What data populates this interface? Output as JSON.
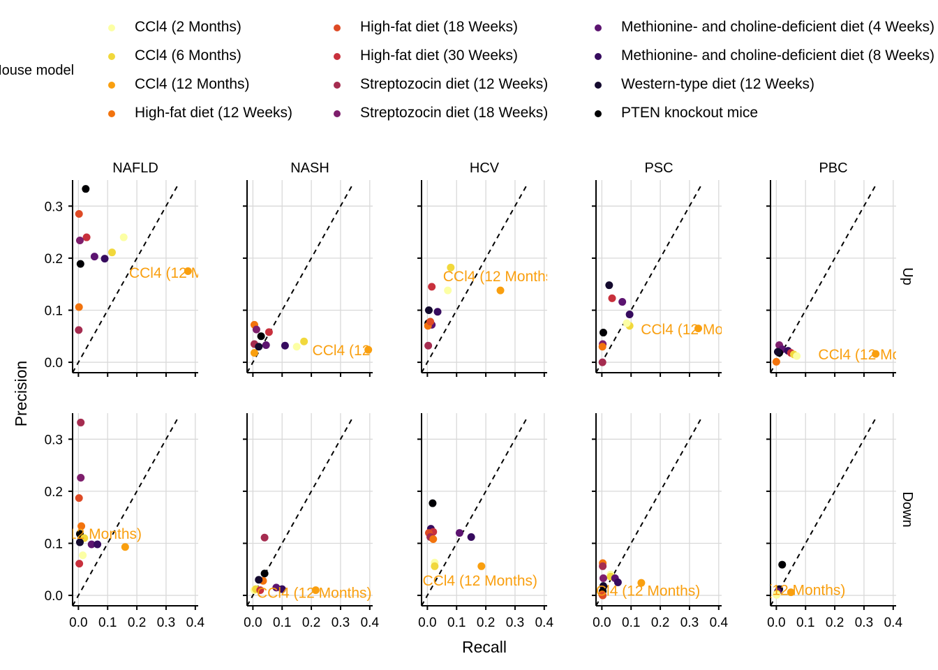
{
  "legend": {
    "title": "Mouse model",
    "items": [
      {
        "label": "CCl4 (2 Months)",
        "color": "#FCFFA4"
      },
      {
        "label": "CCl4 (6 Months)",
        "color": "#F1D83C"
      },
      {
        "label": "CCl4 (12 Months)",
        "color": "#F99F0F"
      },
      {
        "label": "High-fat diet (12 Weeks)",
        "color": "#F2730D"
      },
      {
        "label": "High-fat diet (18 Weeks)",
        "color": "#DE4A25"
      },
      {
        "label": "High-fat diet (30 Weeks)",
        "color": "#C8303C"
      },
      {
        "label": "Streptozocin diet (12 Weeks)",
        "color": "#A52C50"
      },
      {
        "label": "Streptozocin diet (18 Weeks)",
        "color": "#7E1E6C"
      },
      {
        "label": "Methionine- and choline-deficient diet (4 Weeks)",
        "color": "#5C1470"
      },
      {
        "label": "Methionine- and choline-deficient diet (8 Weeks)",
        "color": "#360B5E"
      },
      {
        "label": "Western-type diet (12 Weeks)",
        "color": "#140A2E"
      },
      {
        "label": "PTEN knockout mice",
        "color": "#000004"
      }
    ]
  },
  "chart_data": {
    "type": "scatter",
    "xlabel": "Recall",
    "ylabel": "Precision",
    "xlim": [
      -0.02,
      0.41
    ],
    "ylim": [
      -0.02,
      0.35
    ],
    "x_ticks": [
      "0.0",
      "0.1",
      "0.2",
      "0.3",
      "0.4"
    ],
    "y_ticks": [
      "0.0",
      "0.1",
      "0.2",
      "0.3"
    ],
    "x_tick_values": [
      0,
      0.1,
      0.2,
      0.3,
      0.4
    ],
    "y_tick_values": [
      0,
      0.1,
      0.2,
      0.3
    ],
    "grid": true,
    "reference_line": "y = x (dashed)",
    "legend_position": "top",
    "facet_columns": [
      "NAFLD",
      "NASH",
      "HCV",
      "PSC",
      "PBC"
    ],
    "facet_rows": [
      "Up",
      "Down"
    ],
    "annotation_text": "CCl4 (12 Months)",
    "annotation_color": "#F99F0F",
    "panels": [
      {
        "col": "NAFLD",
        "row": "Up",
        "label_at": [
          0.37,
          0.172
        ],
        "points": [
          [
            0.025,
            0.333,
            11
          ],
          [
            0.002,
            0.285,
            4
          ],
          [
            0.028,
            0.24,
            5
          ],
          [
            0.005,
            0.234,
            7
          ],
          [
            0.155,
            0.24,
            0
          ],
          [
            0.115,
            0.211,
            1
          ],
          [
            0.055,
            0.203,
            8
          ],
          [
            0.09,
            0.199,
            9
          ],
          [
            0.007,
            0.189,
            11
          ],
          [
            0.375,
            0.175,
            2
          ],
          [
            0.002,
            0.106,
            3
          ],
          [
            0.001,
            0.062,
            6
          ]
        ]
      },
      {
        "col": "NASH",
        "row": "Up",
        "label_at": [
          0.4,
          0.023
        ],
        "points": [
          [
            0.005,
            0.072,
            3
          ],
          [
            0.012,
            0.063,
            7
          ],
          [
            0.055,
            0.058,
            5
          ],
          [
            0.028,
            0.05,
            11
          ],
          [
            0.045,
            0.033,
            8
          ],
          [
            0.11,
            0.032,
            9
          ],
          [
            0.175,
            0.04,
            1
          ],
          [
            0.15,
            0.03,
            0
          ],
          [
            0.005,
            0.035,
            6
          ],
          [
            0.005,
            0.018,
            2
          ],
          [
            0.02,
            0.03,
            10
          ],
          [
            0.395,
            0.024,
            2
          ]
        ]
      },
      {
        "col": "HCV",
        "row": "Up",
        "label_at": [
          0.25,
          0.165
        ],
        "points": [
          [
            0.015,
            0.145,
            5
          ],
          [
            0.08,
            0.182,
            1
          ],
          [
            0.07,
            0.138,
            0
          ],
          [
            0.25,
            0.138,
            2
          ],
          [
            0.005,
            0.1,
            10
          ],
          [
            0.035,
            0.097,
            9
          ],
          [
            0.003,
            0.075,
            11
          ],
          [
            0.015,
            0.072,
            8
          ],
          [
            0.002,
            0.07,
            3
          ],
          [
            0.003,
            0.032,
            6
          ],
          [
            0.01,
            0.078,
            4
          ]
        ]
      },
      {
        "col": "PSC",
        "row": "Up",
        "label_at": [
          0.33,
          0.063
        ],
        "points": [
          [
            0.025,
            0.148,
            10
          ],
          [
            0.035,
            0.123,
            5
          ],
          [
            0.07,
            0.116,
            8
          ],
          [
            0.095,
            0.092,
            9
          ],
          [
            0.095,
            0.07,
            1
          ],
          [
            0.085,
            0.075,
            0
          ],
          [
            0.33,
            0.065,
            2
          ],
          [
            0.005,
            0.057,
            11
          ],
          [
            0.003,
            0.035,
            7
          ],
          [
            0.002,
            0.03,
            3
          ],
          [
            0.002,
            0.0,
            6
          ]
        ]
      },
      {
        "col": "PBC",
        "row": "Up",
        "label_at": [
          0.34,
          0.015
        ],
        "points": [
          [
            0.01,
            0.033,
            7
          ],
          [
            0.02,
            0.025,
            8
          ],
          [
            0.04,
            0.022,
            9
          ],
          [
            0.05,
            0.018,
            5
          ],
          [
            0.01,
            0.018,
            11
          ],
          [
            0.06,
            0.015,
            1
          ],
          [
            0.07,
            0.012,
            0
          ],
          [
            0.34,
            0.016,
            2
          ],
          [
            0.0,
            0.001,
            3
          ],
          [
            0.005,
            0.02,
            10
          ]
        ]
      },
      {
        "col": "NAFLD",
        "row": "Down",
        "label_at": [
          0.02,
          0.118
        ],
        "points": [
          [
            0.008,
            0.332,
            6
          ],
          [
            0.008,
            0.226,
            7
          ],
          [
            0.002,
            0.187,
            4
          ],
          [
            0.01,
            0.133,
            3
          ],
          [
            0.005,
            0.118,
            11
          ],
          [
            0.02,
            0.11,
            1
          ],
          [
            0.005,
            0.102,
            10
          ],
          [
            0.045,
            0.098,
            8
          ],
          [
            0.065,
            0.098,
            9
          ],
          [
            0.16,
            0.093,
            2
          ],
          [
            0.015,
            0.077,
            0
          ],
          [
            0.003,
            0.061,
            5
          ]
        ]
      },
      {
        "col": "NASH",
        "row": "Down",
        "label_at": [
          0.21,
          0.005
        ],
        "points": [
          [
            0.04,
            0.111,
            6
          ],
          [
            0.04,
            0.042,
            11
          ],
          [
            0.035,
            0.028,
            3
          ],
          [
            0.02,
            0.03,
            10
          ],
          [
            0.08,
            0.015,
            8
          ],
          [
            0.1,
            0.012,
            9
          ],
          [
            0.215,
            0.01,
            2
          ],
          [
            0.005,
            0.01,
            0
          ],
          [
            0.01,
            0.012,
            1
          ],
          [
            0.025,
            0.01,
            5
          ]
        ]
      },
      {
        "col": "HCV",
        "row": "Down",
        "label_at": [
          0.18,
          0.028
        ],
        "points": [
          [
            0.018,
            0.177,
            11
          ],
          [
            0.012,
            0.128,
            9
          ],
          [
            0.02,
            0.122,
            5
          ],
          [
            0.005,
            0.12,
            4
          ],
          [
            0.01,
            0.112,
            6
          ],
          [
            0.02,
            0.108,
            3
          ],
          [
            0.11,
            0.12,
            8
          ],
          [
            0.15,
            0.112,
            9
          ],
          [
            0.025,
            0.063,
            0
          ],
          [
            0.025,
            0.056,
            1
          ],
          [
            0.185,
            0.056,
            2
          ]
        ]
      },
      {
        "col": "PSC",
        "row": "Down",
        "label_at": [
          0.14,
          0.009
        ],
        "points": [
          [
            0.003,
            0.062,
            3
          ],
          [
            0.003,
            0.056,
            6
          ],
          [
            0.03,
            0.04,
            0
          ],
          [
            0.03,
            0.036,
            1
          ],
          [
            0.005,
            0.033,
            7
          ],
          [
            0.045,
            0.033,
            8
          ],
          [
            0.055,
            0.025,
            9
          ],
          [
            0.135,
            0.024,
            2
          ],
          [
            0.005,
            0.018,
            10
          ],
          [
            0.003,
            0.008,
            11
          ],
          [
            0.001,
            0.002,
            3
          ],
          [
            0.003,
            0.0,
            4
          ]
        ]
      },
      {
        "col": "PBC",
        "row": "Down",
        "label_at": [
          0.04,
          0.01
        ],
        "points": [
          [
            0.02,
            0.059,
            11
          ],
          [
            0.01,
            0.012,
            10
          ],
          [
            0.005,
            0.007,
            8
          ],
          [
            0.05,
            0.006,
            2
          ],
          [
            0.002,
            0.003,
            1
          ],
          [
            0.001,
            0.001,
            0
          ]
        ]
      }
    ]
  }
}
